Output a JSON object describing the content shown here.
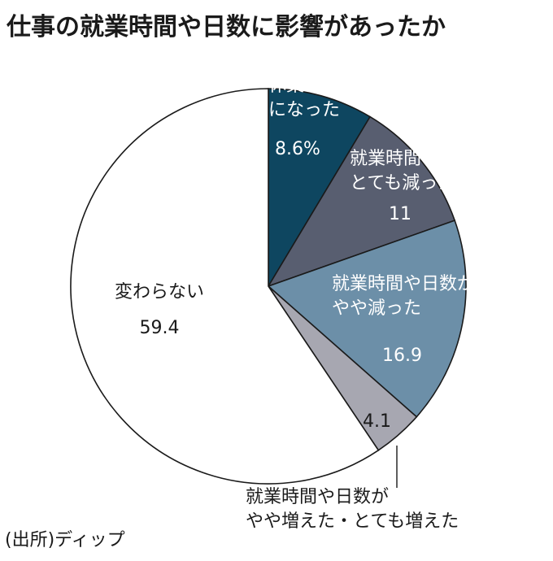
{
  "title": "仕事の就業時間や日数に影響があったか",
  "source": "(出所)ディップ",
  "chart_data": {
    "type": "pie",
    "title": "仕事の就業時間や日数に影響があったか",
    "start": "12 o'clock",
    "direction": "clockwise",
    "slices": [
      {
        "label_lines": [
          "休業すること",
          "になった"
        ],
        "value": 8.6,
        "value_label": "8.6%",
        "color": "#0e4660"
      },
      {
        "label_lines": [
          "就業時間や日数が",
          "とても減った"
        ],
        "value": 11,
        "value_label": "11",
        "color": "#585e70"
      },
      {
        "label_lines": [
          "就業時間や日数が",
          "やや減った"
        ],
        "value": 16.9,
        "value_label": "16.9",
        "color": "#6c8fa8"
      },
      {
        "label_lines": [
          "就業時間や日数が",
          "やや増えた・とても増えた"
        ],
        "value": 4.1,
        "value_label": "4.1",
        "color": "#a7a7b1"
      },
      {
        "label_lines": [
          "変わらない"
        ],
        "value": 59.4,
        "value_label": "59.4",
        "color": "#ffffff"
      }
    ]
  }
}
